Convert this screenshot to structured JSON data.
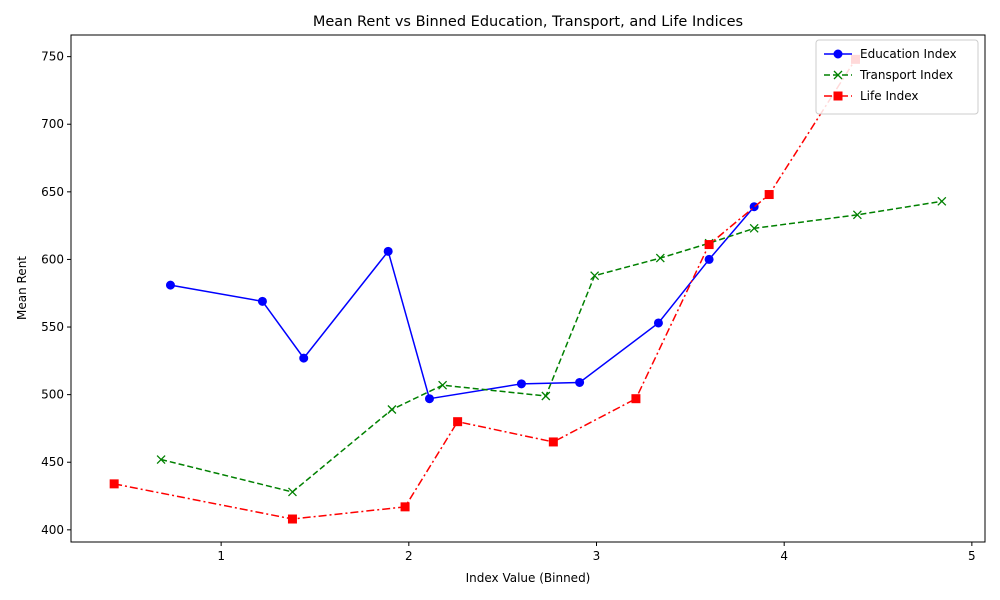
{
  "chart_data": {
    "type": "line",
    "title": "Mean Rent vs Binned Education, Transport, and Life Indices",
    "xlabel": "Index Value (Binned)",
    "ylabel": "Mean Rent",
    "xlim": [
      0.2,
      5.07
    ],
    "ylim": [
      391,
      766
    ],
    "xticks": [
      1,
      2,
      3,
      4,
      5
    ],
    "yticks": [
      400,
      450,
      500,
      550,
      600,
      650,
      700,
      750
    ],
    "grid": false,
    "legend_position": "upper right",
    "series": [
      {
        "name": "Education Index",
        "color": "#0000ff",
        "linestyle": "solid",
        "marker": "circle",
        "x": [
          0.73,
          1.22,
          1.44,
          1.89,
          2.11,
          2.6,
          2.91,
          3.33,
          3.6,
          3.84
        ],
        "y": [
          581,
          569,
          527,
          606,
          497,
          508,
          509,
          553,
          600,
          639
        ]
      },
      {
        "name": "Transport Index",
        "color": "#008000",
        "linestyle": "dashed",
        "marker": "x",
        "x": [
          0.68,
          1.38,
          1.91,
          2.18,
          2.73,
          2.99,
          3.34,
          3.6,
          3.84,
          4.39,
          4.84
        ],
        "y": [
          452,
          428,
          489,
          507,
          499,
          588,
          601,
          612,
          623,
          633,
          643
        ]
      },
      {
        "name": "Life Index",
        "color": "#ff0000",
        "linestyle": "dashdot",
        "marker": "square",
        "x": [
          0.43,
          1.38,
          1.98,
          2.26,
          2.77,
          3.21,
          3.6,
          3.92,
          4.38
        ],
        "y": [
          434,
          408,
          417,
          480,
          465,
          497,
          611,
          648,
          748
        ]
      }
    ]
  }
}
